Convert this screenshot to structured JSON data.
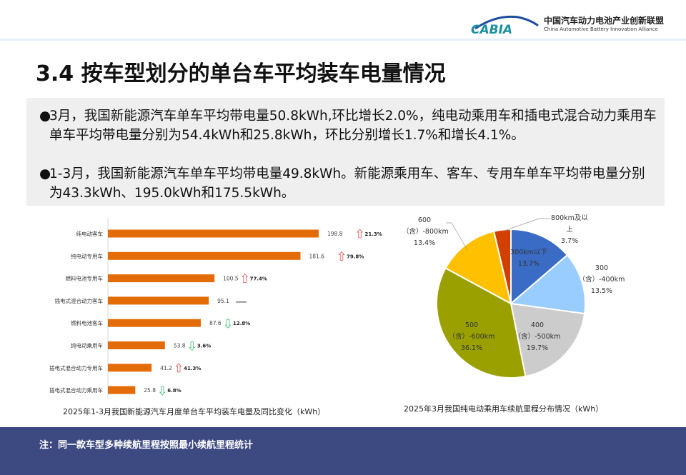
{
  "header": {
    "logo_text": "CABIA",
    "org_cn": "中国汽车动力电池产业创新联盟",
    "org_en": "China Automotive Battery Innovation Alliance"
  },
  "title": "3.4 按车型划分的单台车平均装车电量情况",
  "bullets": [
    "3月，我国新能源汽车单车平均带电量50.8kWh,环比增长2.0%，纯电动乘用车和插电式混合动力乘用车单车平均带电量分别为54.4kWh和25.8kWh，环比分别增长1.7%和增长4.1%。",
    "1-3月，我国新能源汽车单车平均带电量49.8kWh。新能源乘用车、客车、专用车单车平均带电量分别为43.3kWh、195.0kWh和175.5kWh。"
  ],
  "watermark": "中国汽车动力电池产业创新联盟",
  "chart_data": [
    {
      "type": "bar",
      "orientation": "horizontal",
      "title": "2025年1-3月我国新能源汽车月度单台车平均装车电量及同比变化（kWh）",
      "categories": [
        "纯电动客车",
        "纯电动专用车",
        "燃料电池专用车",
        "插电式混合动力客车",
        "燃料电池客车",
        "纯电动乘用车",
        "插电式混合动力专用车",
        "插电式混合动力乘用车"
      ],
      "values": [
        198.8,
        181.6,
        100.5,
        95.1,
        87.6,
        53.8,
        41.2,
        25.8
      ],
      "yoy_change": [
        "21.3%",
        "79.8%",
        "77.4%",
        "—",
        "12.8%",
        "3.6%",
        "41.3%",
        "6.8%"
      ],
      "yoy_direction": [
        "up",
        "up",
        "up",
        "none",
        "down",
        "down",
        "up",
        "down"
      ],
      "bar_color": "#e36c09",
      "up_color": "#e8534f",
      "down_color": "#3dbb6a"
    },
    {
      "type": "pie",
      "title": "2025年3月我国纯电动乘用车续航里程分布情况（kWh）",
      "slices": [
        {
          "label": "300km以下",
          "value": 13.7,
          "color": "#3a6cc6"
        },
        {
          "label": "300（含）-400km",
          "value": 13.5,
          "color": "#99ccff"
        },
        {
          "label": "400（含）-500km",
          "value": 19.7,
          "color": "#cccccc"
        },
        {
          "label": "500（含）-600km",
          "value": 36.1,
          "color": "#99a000"
        },
        {
          "label": "600（含）-800km",
          "value": 13.4,
          "color": "#ffc000"
        },
        {
          "label": "800km及以上",
          "value": 3.7,
          "color": "#d24000"
        }
      ]
    }
  ],
  "footer": {
    "note": "注：同一款车型多种续航里程按照最小续航里程统计"
  }
}
